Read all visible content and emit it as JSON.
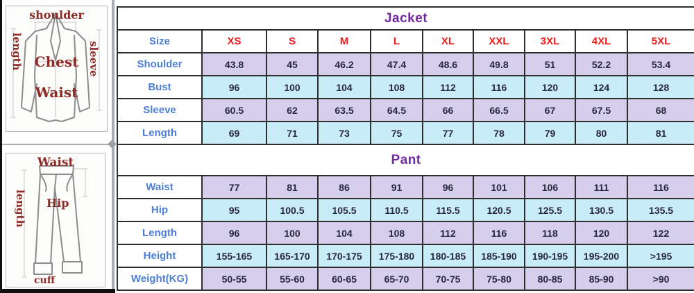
{
  "colors": {
    "lavender_row": "#d5cfec",
    "cyan_row": "#c9edf8",
    "label_blue": "#4d7fd6",
    "size_red": "#ee1b1b",
    "title_purple": "#7228a0",
    "value_text": "#26263e",
    "diagram_label_red": "#8f2b26"
  },
  "jacket_diagram": {
    "top_label": "shoulder",
    "left_label": "length",
    "right_label": "sleeve",
    "chest_label": "Chest",
    "waist_label": "Waist"
  },
  "pant_diagram": {
    "top_label": "Waist",
    "left_label": "length",
    "hip_label": "Hip",
    "cuff_label": "cuff"
  },
  "size_table": {
    "jacket_title": "Jacket",
    "pant_title": "Pant",
    "size_row": {
      "label": "Size",
      "values": [
        "XS",
        "S",
        "M",
        "L",
        "XL",
        "XXL",
        "3XL",
        "4XL",
        "5XL"
      ]
    },
    "jacket_rows": [
      {
        "label": "Shoulder",
        "values": [
          "43.8",
          "45",
          "46.2",
          "47.4",
          "48.6",
          "49.8",
          "51",
          "52.2",
          "53.4"
        ]
      },
      {
        "label": "Bust",
        "values": [
          "96",
          "100",
          "104",
          "108",
          "112",
          "116",
          "120",
          "124",
          "128"
        ]
      },
      {
        "label": "Sleeve",
        "values": [
          "60.5",
          "62",
          "63.5",
          "64.5",
          "66",
          "66.5",
          "67",
          "67.5",
          "68"
        ]
      },
      {
        "label": "Length",
        "values": [
          "69",
          "71",
          "73",
          "75",
          "77",
          "78",
          "79",
          "80",
          "81"
        ]
      }
    ],
    "pant_rows": [
      {
        "label": "Waist",
        "values": [
          "77",
          "81",
          "86",
          "91",
          "96",
          "101",
          "106",
          "111",
          "116"
        ]
      },
      {
        "label": "Hip",
        "values": [
          "95",
          "100.5",
          "105.5",
          "110.5",
          "115.5",
          "120.5",
          "125.5",
          "130.5",
          "135.5"
        ]
      },
      {
        "label": "Length",
        "values": [
          "96",
          "100",
          "104",
          "108",
          "112",
          "116",
          "118",
          "120",
          "122"
        ]
      },
      {
        "label": "Height",
        "values": [
          "155-165",
          "165-170",
          "170-175",
          "175-180",
          "180-185",
          "185-190",
          "190-195",
          "195-200",
          ">195"
        ]
      },
      {
        "label": "Weight(KG)",
        "values": [
          "50-55",
          "55-60",
          "60-65",
          "65-70",
          "70-75",
          "75-80",
          "80-85",
          "85-90",
          ">90"
        ]
      }
    ]
  }
}
